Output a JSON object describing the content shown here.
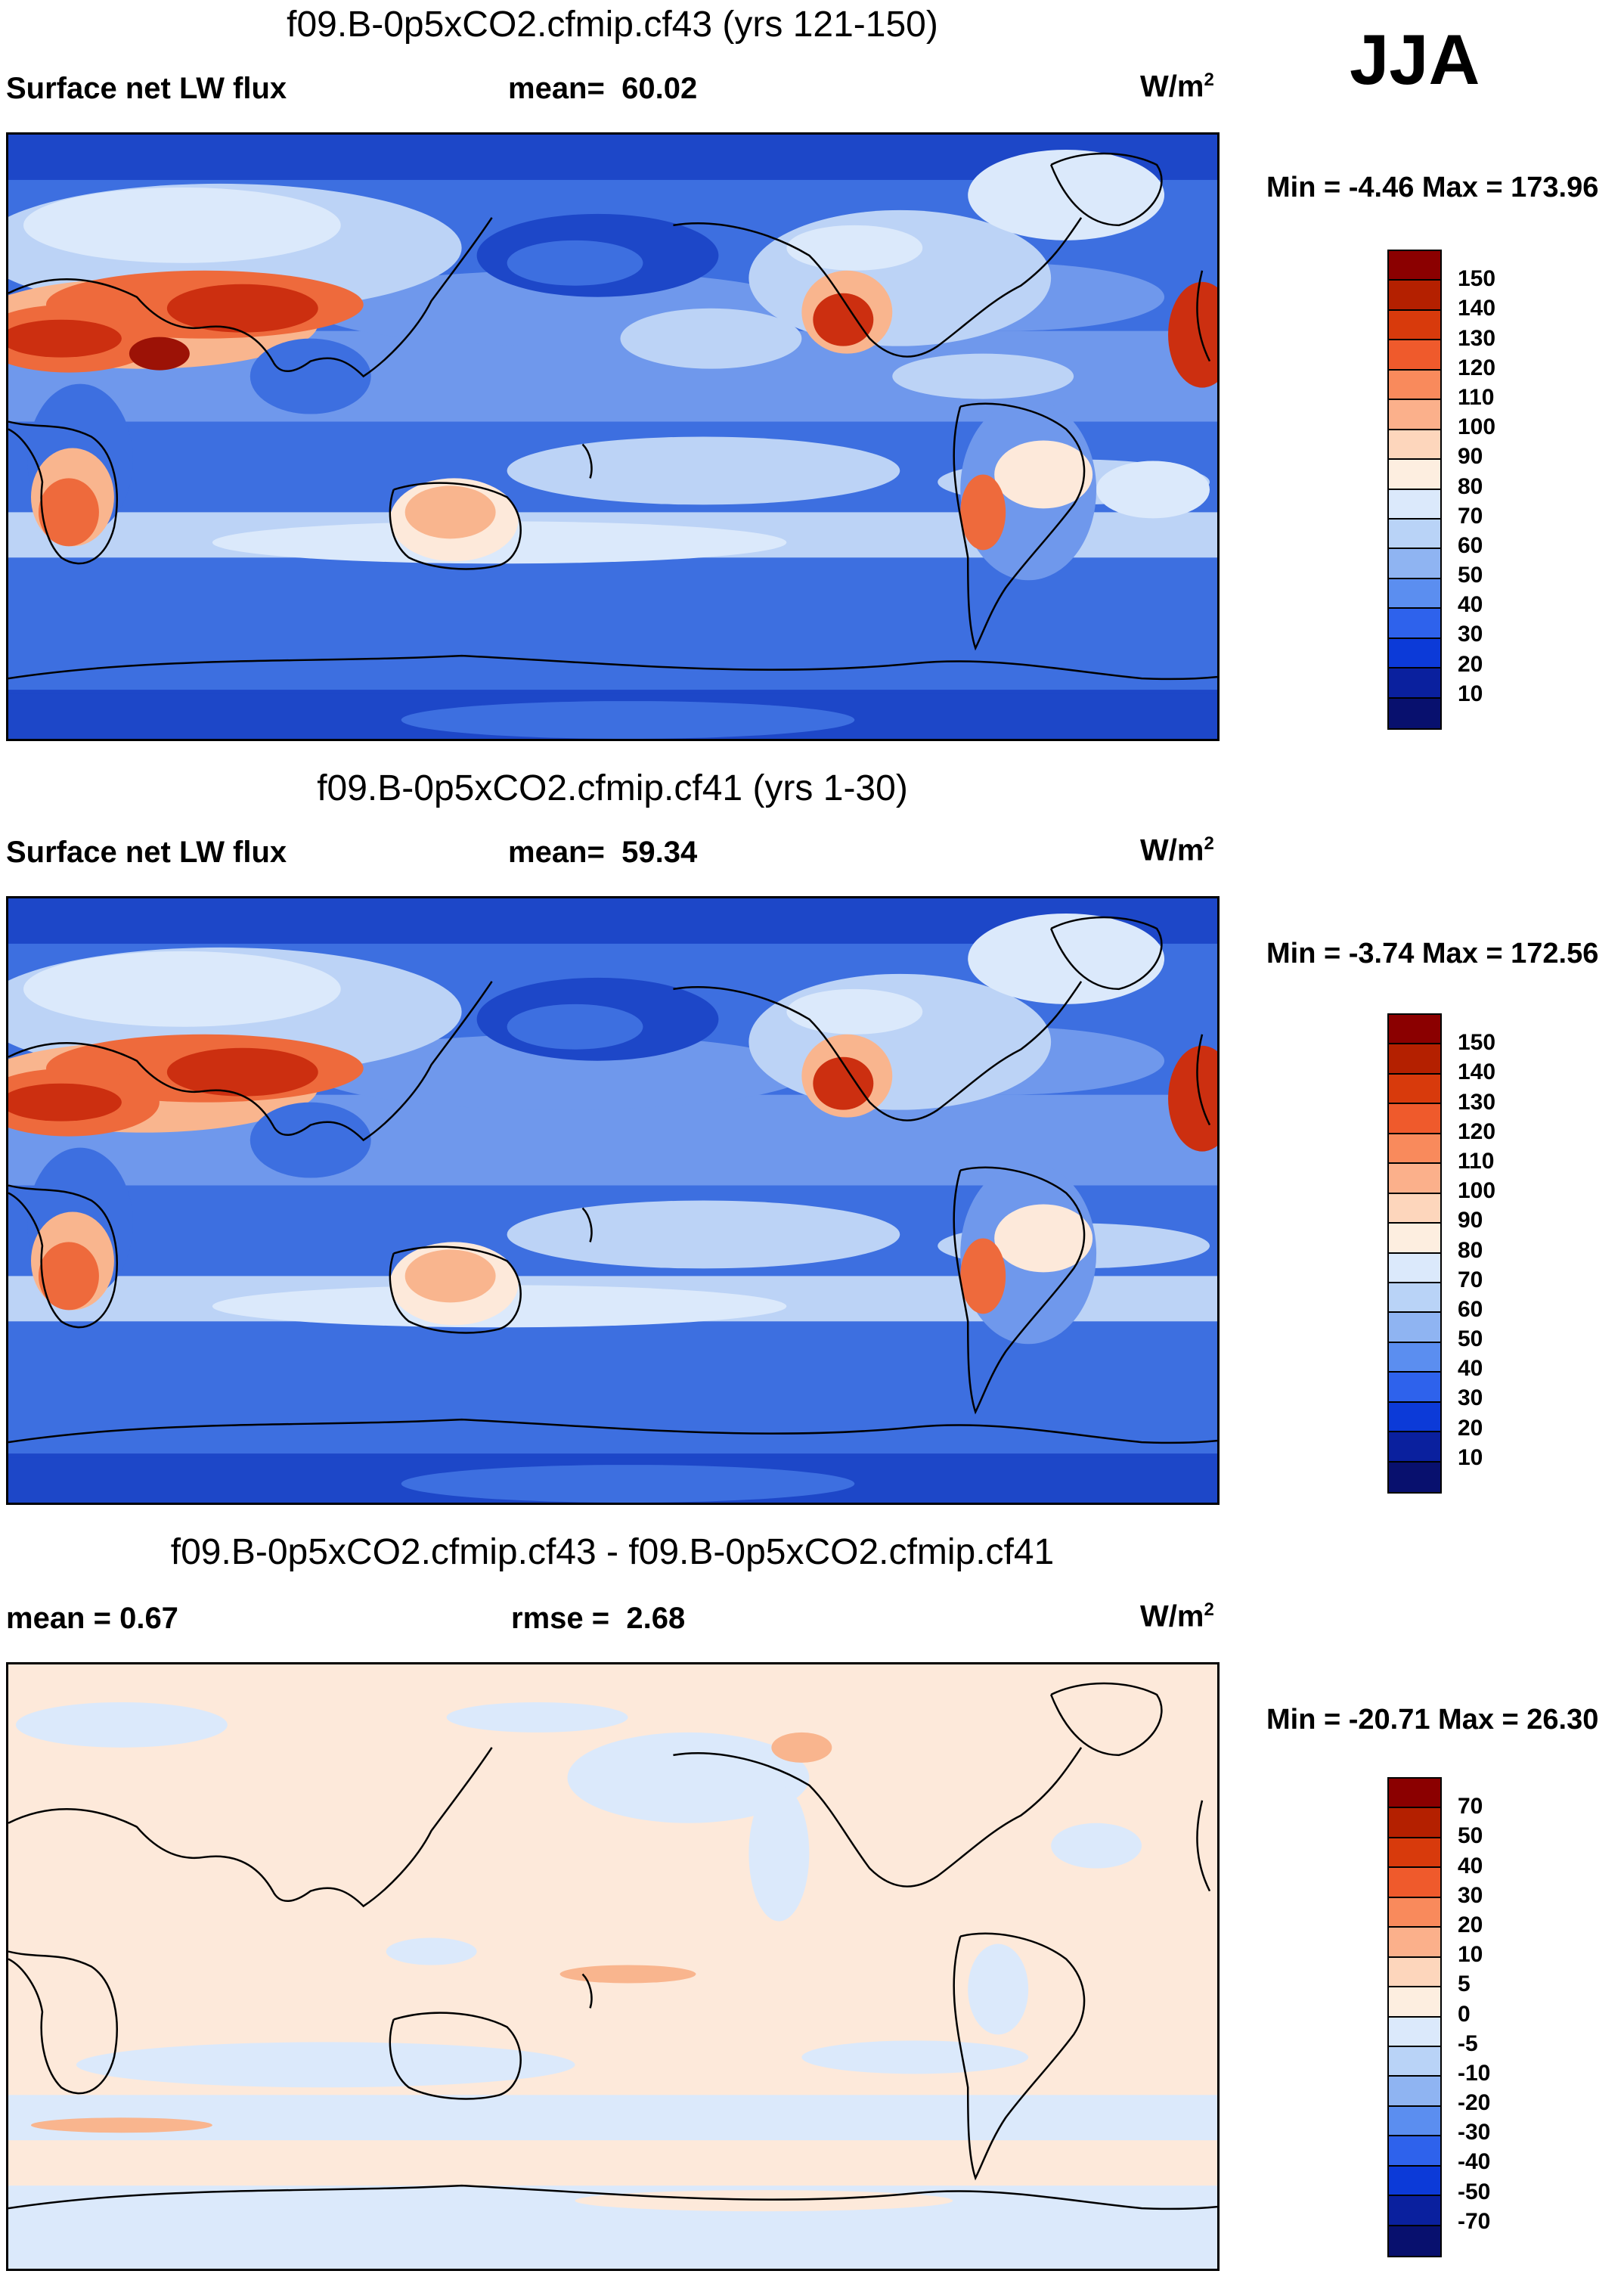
{
  "season": "JJA",
  "panels": [
    {
      "title": "f09.B-0p5xCO2.cfmip.cf43 (yrs 121-150)",
      "left_label": "Surface net LW flux",
      "stat1_label": "mean=",
      "stat1_value": "60.02",
      "units": "W/m",
      "units_sup": "2",
      "minmax": "Min =  -4.46 Max = 173.96",
      "colorbar_ticks": [
        "150",
        "140",
        "130",
        "120",
        "110",
        "100",
        "90",
        "80",
        "70",
        "60",
        "50",
        "40",
        "30",
        "20",
        "10"
      ],
      "colors": [
        "#8b0000",
        "#b42000",
        "#d83a0c",
        "#ef5a2c",
        "#f98a5c",
        "#fbb08b",
        "#fdd6bc",
        "#fdeee0",
        "#dbe9fb",
        "#b9d3f7",
        "#8fb4f2",
        "#5b8ef0",
        "#2e62ec",
        "#0c3ad8",
        "#0a209e",
        "#08106e"
      ]
    },
    {
      "title": "f09.B-0p5xCO2.cfmip.cf41 (yrs 1-30)",
      "left_label": "Surface net LW flux",
      "stat1_label": "mean=",
      "stat1_value": "59.34",
      "units": "W/m",
      "units_sup": "2",
      "minmax": "Min =  -3.74 Max = 172.56",
      "colorbar_ticks": [
        "150",
        "140",
        "130",
        "120",
        "110",
        "100",
        "90",
        "80",
        "70",
        "60",
        "50",
        "40",
        "30",
        "20",
        "10"
      ],
      "colors": [
        "#8b0000",
        "#b42000",
        "#d83a0c",
        "#ef5a2c",
        "#f98a5c",
        "#fbb08b",
        "#fdd6bc",
        "#fdeee0",
        "#dbe9fb",
        "#b9d3f7",
        "#8fb4f2",
        "#5b8ef0",
        "#2e62ec",
        "#0c3ad8",
        "#0a209e",
        "#08106e"
      ]
    },
    {
      "title": "f09.B-0p5xCO2.cfmip.cf43 - f09.B-0p5xCO2.cfmip.cf41",
      "left_label": "mean =   0.67",
      "stat1_label": "rmse =",
      "stat1_value": "2.68",
      "units": "W/m",
      "units_sup": "2",
      "minmax": "Min = -20.71 Max =  26.30",
      "colorbar_ticks": [
        "70",
        "50",
        "40",
        "30",
        "20",
        "10",
        "5",
        "0",
        "-5",
        "-10",
        "-20",
        "-30",
        "-40",
        "-50",
        "-70"
      ],
      "colors": [
        "#8b0000",
        "#b42000",
        "#d83a0c",
        "#ef5a2c",
        "#f98a5c",
        "#fbb08b",
        "#fdd6bc",
        "#fdeee0",
        "#dbe9fb",
        "#b9d3f7",
        "#8fb4f2",
        "#5b8ef0",
        "#2e62ec",
        "#0c3ad8",
        "#0a209e",
        "#08106e"
      ]
    }
  ],
  "map_colors": {
    "ocean_blue": "#3d6fe0",
    "ocean_mid": "#6f98ec",
    "pale_blue": "#bcd3f6",
    "very_pale": "#dbe9fb",
    "deep_blue": "#1d47c8",
    "cream": "#fde9da",
    "peach": "#f9b58e",
    "orange": "#ee6a3c",
    "red": "#cc2f10",
    "dark_red": "#9c1206"
  }
}
